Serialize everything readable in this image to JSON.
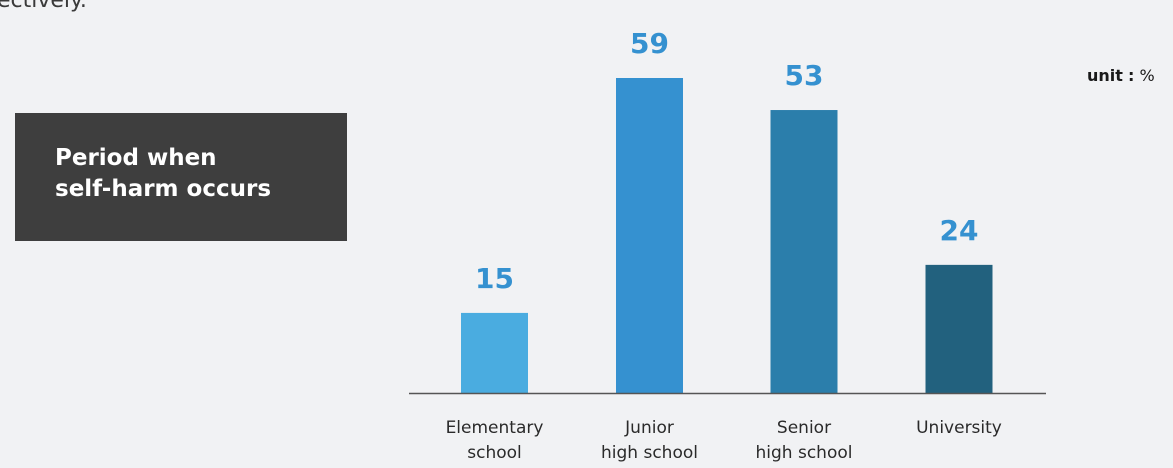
{
  "top_text": "ectively.",
  "title": {
    "lines": [
      "Period when",
      "self-harm occurs"
    ]
  },
  "unit": {
    "key": "unit",
    "separator": ":",
    "symbol": "%"
  },
  "chart_data": {
    "type": "bar",
    "categories": [
      [
        "Elementary",
        "school"
      ],
      [
        "Junior",
        "high school"
      ],
      [
        "Senior",
        "high school"
      ],
      [
        "University"
      ]
    ],
    "values": [
      15,
      59,
      53,
      24
    ],
    "colors": [
      "#4aace0",
      "#3591d0",
      "#2b7eab",
      "#22617e"
    ],
    "value_label_color": "#3591d0",
    "axis_color": "#555555",
    "ylim": [
      0,
      59
    ],
    "grid": false,
    "legend": "none"
  }
}
